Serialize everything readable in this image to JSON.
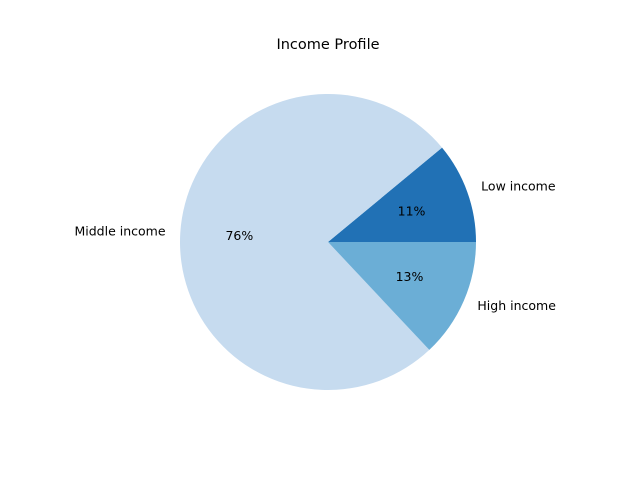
{
  "chart_data": {
    "type": "pie",
    "title": "Income Profile",
    "slices": [
      {
        "label": "Low income",
        "value": 11,
        "percent_label": "11%",
        "color": "#2171b5"
      },
      {
        "label": "Middle income",
        "value": 76,
        "percent_label": "76%",
        "color": "#c6dbef"
      },
      {
        "label": "High income",
        "value": 13,
        "percent_label": "13%",
        "color": "#6baed6"
      }
    ],
    "start_angle_deg": 0,
    "direction": "counterclockwise",
    "legend": "none"
  }
}
